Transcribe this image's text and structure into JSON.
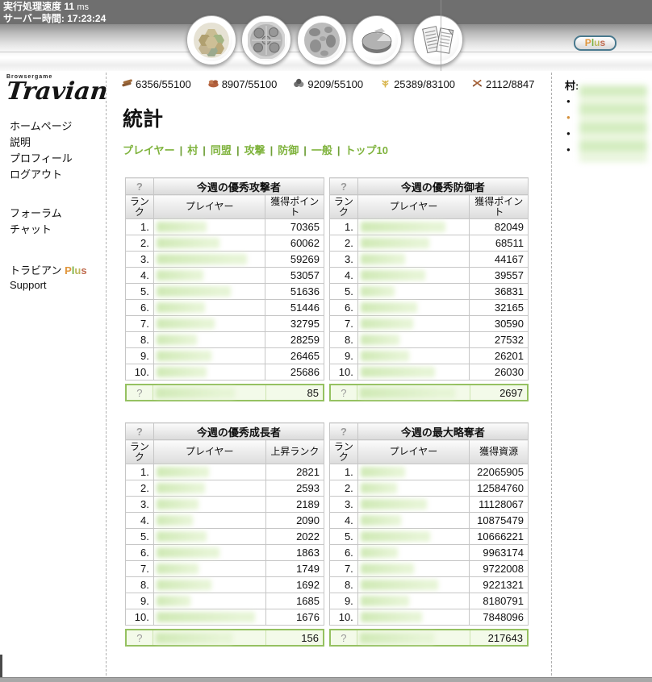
{
  "topbar": {
    "speed_label": "実行処理速度",
    "speed_value": "11",
    "speed_unit": "ms",
    "time_label": "サーバー時間:",
    "time_value": "17:23:24"
  },
  "header": {
    "plus_button_label": "Plus",
    "icons": [
      "resources-overview-icon",
      "village-center-icon",
      "map-icon",
      "statistics-icon",
      "reports-icon"
    ]
  },
  "logo": {
    "small_text": "Browsergame",
    "brand": "Travian"
  },
  "sidebar": {
    "group1": [
      "ホームページ",
      "説明",
      "プロフィール",
      "ログアウト"
    ],
    "group2": [
      "フォーラム",
      "チャット"
    ],
    "plus_prefix": "トラビアン ",
    "plus_word": "Plus",
    "support": "Support"
  },
  "resources": [
    {
      "icon": "wood-icon",
      "value": "6356/55100"
    },
    {
      "icon": "clay-icon",
      "value": "8907/55100"
    },
    {
      "icon": "iron-icon",
      "value": "9209/55100"
    },
    {
      "icon": "crop-icon",
      "value": "25389/83100"
    },
    {
      "icon": "free-crop-icon",
      "value": "2112/8847"
    }
  ],
  "page": {
    "title": "統計"
  },
  "stats_nav": {
    "links": [
      "プレイヤー",
      "村",
      "同盟",
      "攻撃",
      "防御",
      "一般",
      "トップ10"
    ],
    "separator": "|"
  },
  "tables": [
    {
      "help": "?",
      "title": "今週の優秀攻撃者",
      "columns": {
        "rank": "ランク",
        "player": "プレイヤー",
        "value": "獲得ポイント"
      },
      "rows": [
        {
          "rank": "1.",
          "value": "70365"
        },
        {
          "rank": "2.",
          "value": "60062"
        },
        {
          "rank": "3.",
          "value": "59269"
        },
        {
          "rank": "4.",
          "value": "53057"
        },
        {
          "rank": "5.",
          "value": "51636"
        },
        {
          "rank": "6.",
          "value": "51446"
        },
        {
          "rank": "7.",
          "value": "32795"
        },
        {
          "rank": "8.",
          "value": "28259"
        },
        {
          "rank": "9.",
          "value": "26465"
        },
        {
          "rank": "10.",
          "value": "25686"
        }
      ],
      "footer": {
        "rank": "?",
        "value": "85"
      }
    },
    {
      "help": "?",
      "title": "今週の優秀防御者",
      "columns": {
        "rank": "ランク",
        "player": "プレイヤー",
        "value": "獲得ポイント"
      },
      "rows": [
        {
          "rank": "1.",
          "value": "82049"
        },
        {
          "rank": "2.",
          "value": "68511"
        },
        {
          "rank": "3.",
          "value": "44167"
        },
        {
          "rank": "4.",
          "value": "39557"
        },
        {
          "rank": "5.",
          "value": "36831"
        },
        {
          "rank": "6.",
          "value": "32165"
        },
        {
          "rank": "7.",
          "value": "30590"
        },
        {
          "rank": "8.",
          "value": "27532"
        },
        {
          "rank": "9.",
          "value": "26201"
        },
        {
          "rank": "10.",
          "value": "26030"
        }
      ],
      "footer": {
        "rank": "?",
        "value": "2697"
      }
    },
    {
      "help": "?",
      "title": "今週の優秀成長者",
      "columns": {
        "rank": "ランク",
        "player": "プレイヤー",
        "value": "上昇ランク"
      },
      "rows": [
        {
          "rank": "1.",
          "value": "2821"
        },
        {
          "rank": "2.",
          "value": "2593"
        },
        {
          "rank": "3.",
          "value": "2189"
        },
        {
          "rank": "4.",
          "value": "2090"
        },
        {
          "rank": "5.",
          "value": "2022"
        },
        {
          "rank": "6.",
          "value": "1863"
        },
        {
          "rank": "7.",
          "value": "1749"
        },
        {
          "rank": "8.",
          "value": "1692"
        },
        {
          "rank": "9.",
          "value": "1685"
        },
        {
          "rank": "10.",
          "value": "1676"
        }
      ],
      "footer": {
        "rank": "?",
        "value": "156"
      }
    },
    {
      "help": "?",
      "title": "今週の最大略奪者",
      "columns": {
        "rank": "ランク",
        "player": "プレイヤー",
        "value": "獲得資源"
      },
      "rows": [
        {
          "rank": "1.",
          "value": "22065905"
        },
        {
          "rank": "2.",
          "value": "12584760"
        },
        {
          "rank": "3.",
          "value": "11128067"
        },
        {
          "rank": "4.",
          "value": "10875479"
        },
        {
          "rank": "5.",
          "value": "10666221"
        },
        {
          "rank": "6.",
          "value": "9963174"
        },
        {
          "rank": "7.",
          "value": "9722008"
        },
        {
          "rank": "8.",
          "value": "9221321"
        },
        {
          "rank": "9.",
          "value": "8180791"
        },
        {
          "rank": "10.",
          "value": "7848096"
        }
      ],
      "footer": {
        "rank": "?",
        "value": "217643"
      }
    }
  ],
  "villages": {
    "label": "村:",
    "items": [
      {
        "active": false
      },
      {
        "active": true
      },
      {
        "active": false
      },
      {
        "active": false
      }
    ]
  },
  "colors": {
    "nav_green": "#7fb33d",
    "footer_border_green": "#95c161",
    "blur_green": "#cfe9b5",
    "active_village_orange": "#d4913c",
    "plus_letter_colors": [
      "#e0953a",
      "#78b043",
      "#bdb75a",
      "#bf6a4e"
    ],
    "topbar_gray": "#6f6f6f"
  }
}
